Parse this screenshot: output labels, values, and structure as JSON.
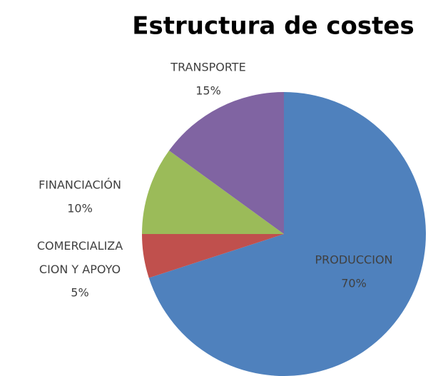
{
  "chart_data": {
    "type": "pie",
    "title": "Estructura de costes",
    "categories": [
      "PRODUCCION",
      "COMERCIALIZACION Y APOYO",
      "FINANCIACIÓN",
      "TRANSPORTE"
    ],
    "values": [
      70,
      5,
      10,
      15
    ],
    "value_labels": [
      "70%",
      "5%",
      "10%",
      "15%"
    ],
    "colors": [
      "#4f81bd",
      "#c0504d",
      "#9bbb59",
      "#8064a2"
    ]
  }
}
